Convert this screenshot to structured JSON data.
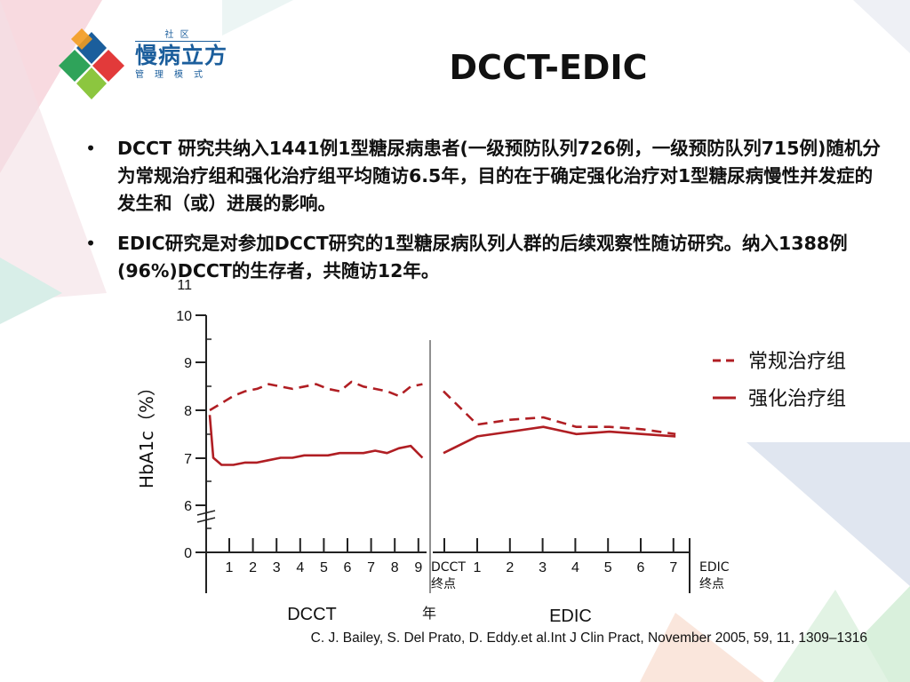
{
  "logo": {
    "sup": "社 区",
    "main": "慢病立方",
    "sub": "管理模式"
  },
  "title": "DCCT-EDIC",
  "bullets": [
    "DCCT  研究共纳入1441例1型糖尿病患者(一级预防队列726例，一级预防队列715例)随机分为常规治疗组和强化治疗组平均随访6.5年，目的在于确定强化治疗对1型糖尿病慢性并发症的发生和（或）进展的影响。",
    "EDIC研究是对参加DCCT研究的1型糖尿病队列人群的后续观察性随访研究。纳入1388例(96%)DCCT的生存者，共随访12年。"
  ],
  "citation": "C. J. Bailey, S. Del Prato, D. Eddy.et al.Int J Clin Pract, November 2005, 59, 11, 1309–1316",
  "chart_data": {
    "type": "line",
    "ylabel": "HbA1c（%）",
    "y_ticks": [
      "0",
      "6",
      "7",
      "8",
      "9",
      "10",
      "11"
    ],
    "y_axis_break": "0 to 6",
    "xlabel": "年",
    "dcct": {
      "label": "DCCT",
      "ticks": [
        "1",
        "2",
        "3",
        "4",
        "5",
        "6",
        "7",
        "8",
        "9"
      ],
      "endpoint_label": [
        "DCCT",
        "终点"
      ]
    },
    "edic": {
      "label": "EDIC",
      "ticks": [
        "1",
        "2",
        "3",
        "4",
        "5",
        "6",
        "7"
      ],
      "endpoint_label": [
        "EDIC",
        "终点"
      ]
    },
    "legend_position": "top-right",
    "series": [
      {
        "name": "常规治疗组",
        "style": "dashed",
        "color": "#b01e23",
        "dcct": [
          [
            0,
            8.0
          ],
          [
            0.5,
            8.15
          ],
          [
            1,
            8.3
          ],
          [
            1.5,
            8.4
          ],
          [
            2,
            8.45
          ],
          [
            2.5,
            8.55
          ],
          [
            3,
            8.5
          ],
          [
            3.5,
            8.45
          ],
          [
            4,
            8.5
          ],
          [
            4.5,
            8.55
          ],
          [
            5,
            8.45
          ],
          [
            5.5,
            8.4
          ],
          [
            6,
            8.6
          ],
          [
            6.5,
            8.5
          ],
          [
            7,
            8.45
          ],
          [
            7.5,
            8.4
          ],
          [
            8,
            8.3
          ],
          [
            8.5,
            8.5
          ],
          [
            9,
            8.55
          ]
        ],
        "edic": [
          [
            0,
            8.4
          ],
          [
            1,
            7.7
          ],
          [
            2,
            7.8
          ],
          [
            3,
            7.85
          ],
          [
            4,
            7.65
          ],
          [
            5,
            7.65
          ],
          [
            6,
            7.6
          ],
          [
            7,
            7.5
          ]
        ]
      },
      {
        "name": "强化治疗组",
        "style": "solid",
        "color": "#b01e23",
        "dcct": [
          [
            0,
            7.9
          ],
          [
            0.15,
            7.0
          ],
          [
            0.5,
            6.85
          ],
          [
            1,
            6.85
          ],
          [
            1.5,
            6.9
          ],
          [
            2,
            6.9
          ],
          [
            2.5,
            6.95
          ],
          [
            3,
            7.0
          ],
          [
            3.5,
            7.0
          ],
          [
            4,
            7.05
          ],
          [
            4.5,
            7.05
          ],
          [
            5,
            7.05
          ],
          [
            5.5,
            7.1
          ],
          [
            6,
            7.1
          ],
          [
            6.5,
            7.1
          ],
          [
            7,
            7.15
          ],
          [
            7.5,
            7.1
          ],
          [
            8,
            7.2
          ],
          [
            8.5,
            7.25
          ],
          [
            9,
            7.0
          ]
        ],
        "edic": [
          [
            0,
            7.1
          ],
          [
            1,
            7.45
          ],
          [
            2,
            7.55
          ],
          [
            3,
            7.65
          ],
          [
            4,
            7.5
          ],
          [
            5,
            7.55
          ],
          [
            6,
            7.5
          ],
          [
            7,
            7.45
          ]
        ]
      }
    ]
  }
}
